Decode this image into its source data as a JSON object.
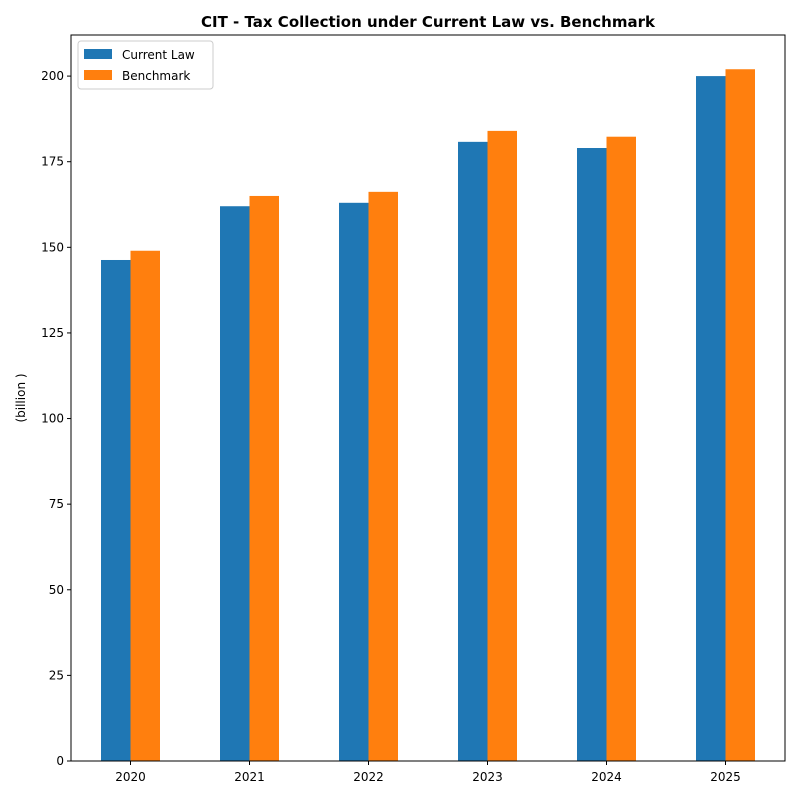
{
  "chart_data": {
    "type": "bar",
    "title": "CIT - Tax Collection under Current Law vs. Benchmark",
    "xlabel": "",
    "ylabel": "(billion )",
    "categories": [
      "2020",
      "2021",
      "2022",
      "2023",
      "2024",
      "2025"
    ],
    "series": [
      {
        "name": "Current Law",
        "color": "#1f77b4",
        "values": [
          146.3,
          162.0,
          163.0,
          180.8,
          179.0,
          200.0
        ]
      },
      {
        "name": "Benchmark",
        "color": "#ff7f0e",
        "values": [
          149.0,
          165.0,
          166.2,
          184.0,
          182.3,
          202.0
        ]
      }
    ],
    "ylim": [
      0,
      212
    ],
    "yticks": [
      0,
      25,
      50,
      75,
      100,
      125,
      150,
      175,
      200
    ],
    "grid": false,
    "legend": "top-left"
  }
}
